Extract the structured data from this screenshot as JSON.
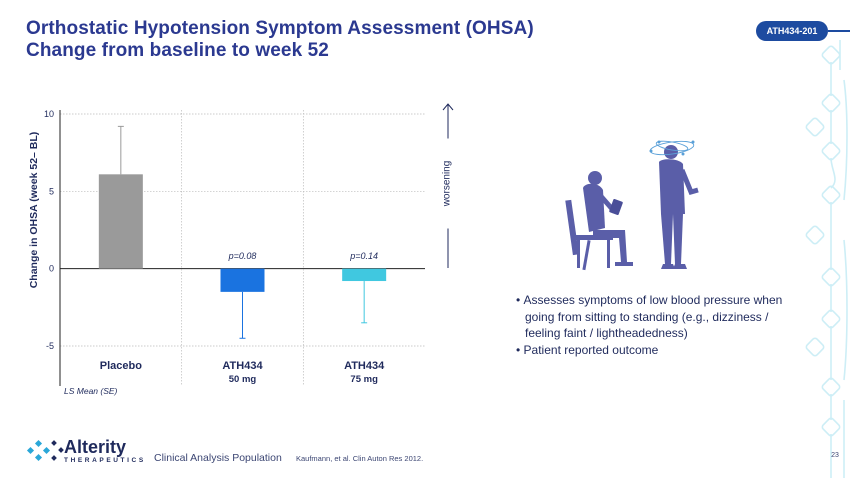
{
  "header": {
    "title_line1": "Orthostatic Hypotension Symptom Assessment (OHSA)",
    "title_line2": "Change from baseline to week 52",
    "badge": "ATH434-201"
  },
  "colors": {
    "title": "#2b3990",
    "badge": "#1d4ba0",
    "placebo": "#9a9a9a",
    "ath434_50mg": "#1a73e0",
    "ath434_75mg": "#40c8e0"
  },
  "chart_data": {
    "type": "bar",
    "ylabel": "Change in OHSA (week 52– BL)",
    "ylim": [
      -5,
      10
    ],
    "yticks": [
      10,
      5,
      0,
      -5
    ],
    "grid": true,
    "categories": [
      {
        "name": "Placebo",
        "sub": ""
      },
      {
        "name": "ATH434",
        "sub": "50 mg"
      },
      {
        "name": "ATH434",
        "sub": "75 mg"
      }
    ],
    "values": [
      6.1,
      -1.5,
      -0.8
    ],
    "error": [
      3.1,
      3.0,
      2.7
    ],
    "pvalues": [
      "",
      "p=0.08",
      "p=0.14"
    ],
    "footnote": "LS Mean (SE)",
    "direction_label": "worsening"
  },
  "bullets": [
    "Assesses symptoms of low blood pressure when going from sitting to standing (e.g., dizziness / feeling faint / lightheadedness)",
    "Patient reported outcome"
  ],
  "footer": {
    "logo_name": "Alterity",
    "logo_sub": "THERAPEUTICS",
    "population": "Clinical Analysis Population",
    "reference": "Kaufmann, et al. Clin Auton Res 2012.",
    "page": "23"
  }
}
